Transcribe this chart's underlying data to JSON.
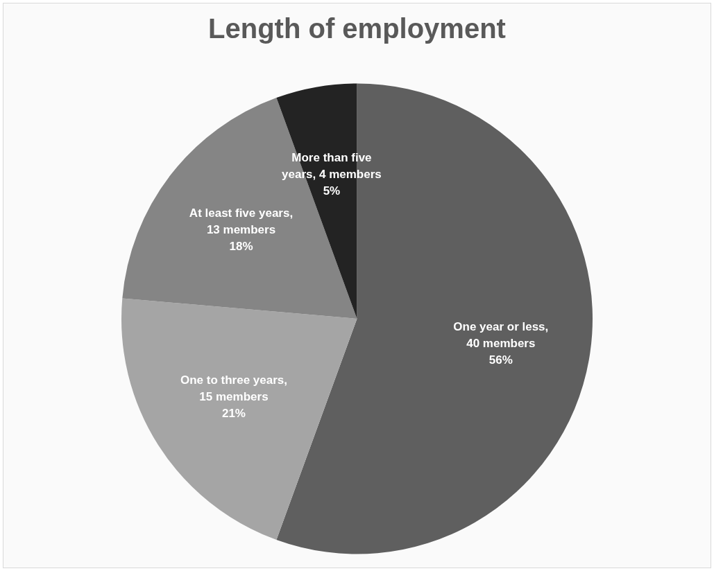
{
  "chart_data": {
    "type": "pie",
    "title": "Length of employment",
    "categories": [
      "One year or less",
      "One to three years",
      "At least five years",
      "More than five years"
    ],
    "values": [
      40,
      15,
      13,
      4
    ],
    "value_labels": [
      ", 40 members\n56%",
      ", 15 members\n21%",
      ", 13 members\n18%",
      ", 4 members\n5%"
    ],
    "colors": [
      "#5f5f5f",
      "#a5a5a5",
      "#858585",
      "#232323"
    ],
    "legend": false
  }
}
